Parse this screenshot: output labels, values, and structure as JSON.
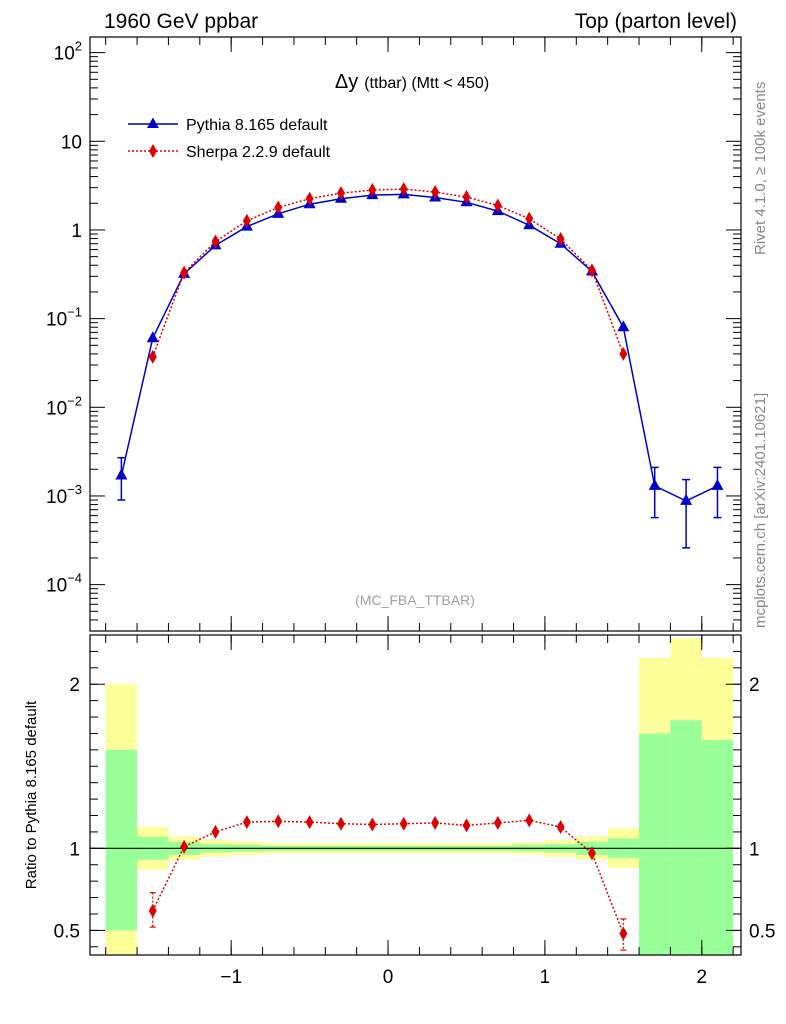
{
  "header": {
    "left": "1960 GeV ppbar",
    "right": "Top (parton level)"
  },
  "side_labels": {
    "rivet": "Rivet 4.1.0, ≥ 100k events",
    "mcplots": "mcplots.cern.ch [arXiv:2401.10621]"
  },
  "chart_data": [
    {
      "type": "line",
      "title": "Δy (ttbar) (Mtt < 450)",
      "title_main": "Δy",
      "title_rest": "(ttbar) (Mtt < 450)",
      "watermark": "(MC_FBA_TTBAR)",
      "yscale": "log",
      "xlim": [
        -1.9,
        2.25
      ],
      "ylim": [
        3e-05,
        150
      ],
      "legend_position": "top-left",
      "y_ticks": [
        {
          "v": 100,
          "base": "10",
          "exp": "2"
        },
        {
          "v": 10,
          "base": "10",
          "exp": ""
        },
        {
          "v": 1,
          "base": "1",
          "exp": ""
        },
        {
          "v": 0.1,
          "base": "10",
          "exp": "−1"
        },
        {
          "v": 0.01,
          "base": "10",
          "exp": "−2"
        },
        {
          "v": 0.001,
          "base": "10",
          "exp": "−3"
        },
        {
          "v": 0.0001,
          "base": "10",
          "exp": "−4"
        }
      ],
      "series": [
        {
          "name": "Pythia 8.165 default",
          "color": "#0000cc",
          "marker": "triangle",
          "dash": "none",
          "x": [
            -1.7,
            -1.5,
            -1.3,
            -1.1,
            -0.9,
            -0.7,
            -0.5,
            -0.3,
            -0.1,
            0.1,
            0.3,
            0.5,
            0.7,
            0.9,
            1.1,
            1.3,
            1.5,
            1.7,
            1.9,
            2.1
          ],
          "y": [
            0.0017,
            0.06,
            0.32,
            0.67,
            1.09,
            1.52,
            1.95,
            2.25,
            2.47,
            2.52,
            2.32,
            2.05,
            1.63,
            1.13,
            0.7,
            0.34,
            0.08,
            0.0013,
            0.00088,
            0.0013
          ],
          "err_lo": [
            0.0008,
            0,
            0,
            0,
            0,
            0,
            0,
            0,
            0,
            0,
            0,
            0,
            0,
            0,
            0,
            0,
            0,
            0.00073,
            0.00062,
            0.00073
          ],
          "err_hi": [
            0.001,
            0,
            0,
            0,
            0,
            0,
            0,
            0,
            0,
            0,
            0,
            0,
            0,
            0,
            0,
            0,
            0,
            0.0008,
            0.00065,
            0.0008
          ]
        },
        {
          "name": "Sherpa 2.2.9 default",
          "color": "#dd0000",
          "marker": "diamond",
          "dash": "dotted",
          "x": [
            -1.5,
            -1.3,
            -1.1,
            -0.9,
            -0.7,
            -0.5,
            -0.3,
            -0.1,
            0.1,
            0.3,
            0.5,
            0.7,
            0.9,
            1.1,
            1.3,
            1.5
          ],
          "y": [
            0.037,
            0.33,
            0.74,
            1.27,
            1.79,
            2.25,
            2.6,
            2.82,
            2.89,
            2.68,
            2.35,
            1.89,
            1.34,
            0.79,
            0.35,
            0.04
          ],
          "err_lo": [
            0,
            0,
            0,
            0,
            0,
            0,
            0,
            0,
            0,
            0,
            0,
            0,
            0,
            0,
            0,
            0
          ],
          "err_hi": [
            0,
            0,
            0,
            0,
            0,
            0,
            0,
            0,
            0,
            0,
            0,
            0,
            0,
            0,
            0,
            0
          ]
        }
      ]
    },
    {
      "type": "line",
      "ylabel": "Ratio to Pythia 8.165 default",
      "xlim": [
        -1.9,
        2.25
      ],
      "ylim": [
        0.35,
        2.3
      ],
      "reference_line": 1,
      "x_ticks": [
        {
          "v": -1,
          "label": "−1"
        },
        {
          "v": 0,
          "label": "0"
        },
        {
          "v": 1,
          "label": "1"
        },
        {
          "v": 2,
          "label": "2"
        }
      ],
      "y_ticks": [
        {
          "v": 0.5,
          "label": "0.5"
        },
        {
          "v": 1,
          "label": "1"
        },
        {
          "v": 2,
          "label": "2"
        }
      ],
      "bands": {
        "edges": [
          -1.8,
          -1.6,
          -1.4,
          -1.2,
          -1.0,
          -0.8,
          -0.6,
          -0.4,
          -0.2,
          0.0,
          0.2,
          0.4,
          0.6,
          0.8,
          1.0,
          1.2,
          1.4,
          1.6,
          1.8,
          2.0,
          2.2
        ],
        "green_lo": [
          0.5,
          0.93,
          0.96,
          0.975,
          0.98,
          0.985,
          0.985,
          0.985,
          0.985,
          0.985,
          0.985,
          0.985,
          0.985,
          0.98,
          0.975,
          0.96,
          0.94,
          0.35,
          0.35,
          0.35
        ],
        "green_hi": [
          1.6,
          1.07,
          1.04,
          1.025,
          1.02,
          1.015,
          1.015,
          1.015,
          1.015,
          1.015,
          1.015,
          1.015,
          1.015,
          1.02,
          1.025,
          1.04,
          1.06,
          1.7,
          1.78,
          1.66
        ],
        "yellow_lo": [
          0.35,
          0.87,
          0.93,
          0.95,
          0.96,
          0.97,
          0.97,
          0.97,
          0.97,
          0.97,
          0.97,
          0.97,
          0.97,
          0.965,
          0.95,
          0.93,
          0.88,
          0.37,
          0.35,
          0.37
        ],
        "yellow_hi": [
          2.0,
          1.13,
          1.07,
          1.05,
          1.04,
          1.03,
          1.03,
          1.03,
          1.03,
          1.03,
          1.03,
          1.03,
          1.03,
          1.035,
          1.05,
          1.07,
          1.12,
          2.16,
          2.28,
          2.16
        ],
        "green_color": "#99ff99",
        "yellow_color": "#ffff99"
      },
      "series": [
        {
          "name": "Sherpa 2.2.9 default",
          "color": "#dd0000",
          "marker": "diamond",
          "dash": "dotted",
          "x": [
            -1.5,
            -1.3,
            -1.1,
            -0.9,
            -0.7,
            -0.5,
            -0.3,
            -0.1,
            0.1,
            0.3,
            0.5,
            0.7,
            0.9,
            1.1,
            1.3,
            1.5
          ],
          "y": [
            0.62,
            1.01,
            1.1,
            1.16,
            1.165,
            1.16,
            1.15,
            1.145,
            1.15,
            1.155,
            1.14,
            1.155,
            1.17,
            1.13,
            0.97,
            0.48
          ],
          "err_lo": [
            0.1,
            0,
            0,
            0,
            0,
            0,
            0,
            0,
            0,
            0,
            0,
            0,
            0,
            0,
            0,
            0.1
          ],
          "err_hi": [
            0.11,
            0,
            0,
            0,
            0,
            0,
            0,
            0,
            0,
            0,
            0,
            0,
            0,
            0,
            0,
            0.09
          ]
        }
      ]
    }
  ]
}
